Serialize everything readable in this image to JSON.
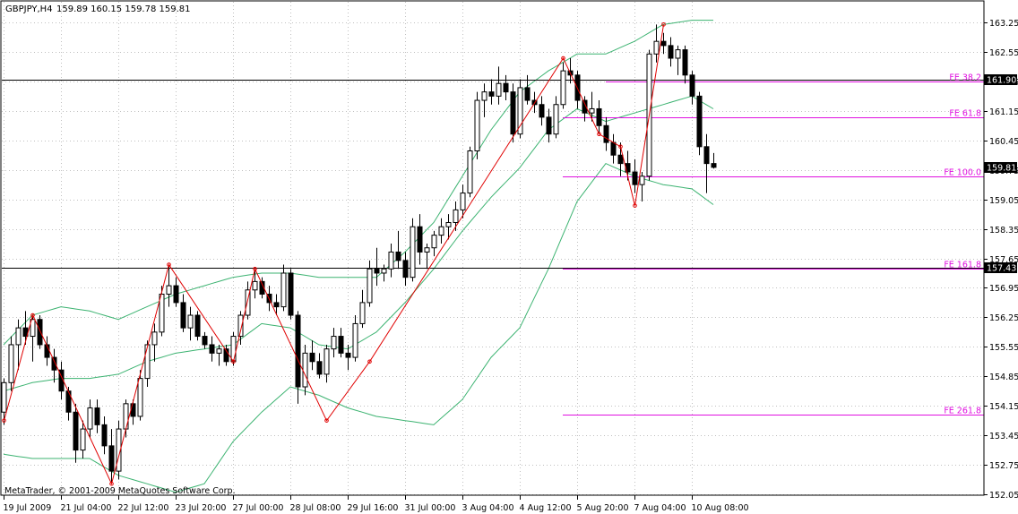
{
  "header": {
    "symbol_text": "GBPJPY,H4",
    "ohlc_text": "159.89 160.15 159.78 159.81"
  },
  "watermark": "MetaTrader, © 2001-2009 MetaQuotes Software Corp.",
  "colors": {
    "background": "#ffffff",
    "grid": "#c0c0c0",
    "candle": "#000000",
    "bollinger": "#3cb371",
    "zigzag": "#e00000",
    "fibo_expansion": "#e010e0",
    "hline": "#000000"
  },
  "chart_data": {
    "type": "candlestick",
    "symbol": "GBPJPY",
    "timeframe": "H4",
    "ylim": [
      151.55,
      163.6
    ],
    "y_ticks": [
      "163.25",
      "162.55",
      "161.85",
      "161.15",
      "160.45",
      "159.75",
      "159.05",
      "158.35",
      "157.65",
      "156.95",
      "156.25",
      "155.55",
      "154.85",
      "154.15",
      "153.45",
      "152.75",
      "152.05"
    ],
    "x_tick_labels": [
      "19 Jul 2009",
      "21 Jul 04:00",
      "22 Jul 12:00",
      "23 Jul 20:00",
      "27 Jul 00:00",
      "28 Jul 08:00",
      "29 Jul 16:00",
      "31 Jul 00:00",
      "3 Aug 04:00",
      "4 Aug 12:00",
      "5 Aug 20:00",
      "7 Aug 04:00",
      "10 Aug 08:00"
    ],
    "x_tick_bar_index": [
      0,
      8,
      16,
      24,
      32,
      40,
      48,
      56,
      64,
      72,
      80,
      88,
      96
    ],
    "candles": [
      [
        154.0,
        154.8,
        153.7,
        154.7
      ],
      [
        154.7,
        155.8,
        154.5,
        155.6
      ],
      [
        155.6,
        156.2,
        155.0,
        156.0
      ],
      [
        156.0,
        156.4,
        155.6,
        155.8
      ],
      [
        155.8,
        156.3,
        155.2,
        156.2
      ],
      [
        156.2,
        156.3,
        155.5,
        155.6
      ],
      [
        155.6,
        155.8,
        155.1,
        155.3
      ],
      [
        155.3,
        155.5,
        154.7,
        155.0
      ],
      [
        155.0,
        155.2,
        154.3,
        154.5
      ],
      [
        154.5,
        154.6,
        153.8,
        154.0
      ],
      [
        154.0,
        154.2,
        152.8,
        153.1
      ],
      [
        153.1,
        153.8,
        152.9,
        153.6
      ],
      [
        153.6,
        154.3,
        153.4,
        154.1
      ],
      [
        154.1,
        154.3,
        153.5,
        153.7
      ],
      [
        153.7,
        153.9,
        153.0,
        153.2
      ],
      [
        153.2,
        153.6,
        152.3,
        152.6
      ],
      [
        152.6,
        153.8,
        152.4,
        153.6
      ],
      [
        153.6,
        154.3,
        153.4,
        154.2
      ],
      [
        154.2,
        154.3,
        153.7,
        153.9
      ],
      [
        153.9,
        155.0,
        153.8,
        154.8
      ],
      [
        154.8,
        155.7,
        154.6,
        155.6
      ],
      [
        155.6,
        156.1,
        155.2,
        155.9
      ],
      [
        155.9,
        157.0,
        155.8,
        156.8
      ],
      [
        156.8,
        157.5,
        156.5,
        157.0
      ],
      [
        157.0,
        157.2,
        156.5,
        156.6
      ],
      [
        156.6,
        156.8,
        155.9,
        156.0
      ],
      [
        156.0,
        156.5,
        155.7,
        156.3
      ],
      [
        156.3,
        156.4,
        155.7,
        155.8
      ],
      [
        155.8,
        155.9,
        155.5,
        155.6
      ],
      [
        155.6,
        155.8,
        155.2,
        155.4
      ],
      [
        155.4,
        155.6,
        155.1,
        155.5
      ],
      [
        155.5,
        155.6,
        155.1,
        155.2
      ],
      [
        155.2,
        155.9,
        155.1,
        155.8
      ],
      [
        155.8,
        156.4,
        155.6,
        156.3
      ],
      [
        156.3,
        157.1,
        156.2,
        156.9
      ],
      [
        156.9,
        157.4,
        156.7,
        157.1
      ],
      [
        157.1,
        157.2,
        156.7,
        156.8
      ],
      [
        156.8,
        157.0,
        156.4,
        156.6
      ],
      [
        156.6,
        156.8,
        156.3,
        156.5
      ],
      [
        156.5,
        157.5,
        156.4,
        157.3
      ],
      [
        157.3,
        157.4,
        156.2,
        156.3
      ],
      [
        156.3,
        156.4,
        154.2,
        154.6
      ],
      [
        154.6,
        155.6,
        154.4,
        155.4
      ],
      [
        155.4,
        155.7,
        155.0,
        155.2
      ],
      [
        155.2,
        155.4,
        154.8,
        154.9
      ],
      [
        154.9,
        155.6,
        154.7,
        155.5
      ],
      [
        155.5,
        156.0,
        155.3,
        155.8
      ],
      [
        155.8,
        156.0,
        155.3,
        155.4
      ],
      [
        155.4,
        155.6,
        155.0,
        155.3
      ],
      [
        155.3,
        156.3,
        155.2,
        156.1
      ],
      [
        156.1,
        156.9,
        156.0,
        156.6
      ],
      [
        156.6,
        157.6,
        156.5,
        157.4
      ],
      [
        157.4,
        157.9,
        157.0,
        157.3
      ],
      [
        157.3,
        157.5,
        157.1,
        157.4
      ],
      [
        157.4,
        158.0,
        157.2,
        157.8
      ],
      [
        157.8,
        158.3,
        157.4,
        157.6
      ],
      [
        157.6,
        157.8,
        157.0,
        157.2
      ],
      [
        157.2,
        158.6,
        157.1,
        158.4
      ],
      [
        158.4,
        158.7,
        157.5,
        157.8
      ],
      [
        157.8,
        158.0,
        157.4,
        157.9
      ],
      [
        157.9,
        158.3,
        157.7,
        158.2
      ],
      [
        158.2,
        158.6,
        158.0,
        158.4
      ],
      [
        158.4,
        158.7,
        158.1,
        158.5
      ],
      [
        158.5,
        159.0,
        158.3,
        158.8
      ],
      [
        158.8,
        159.4,
        158.6,
        159.2
      ],
      [
        159.2,
        160.3,
        159.1,
        160.2
      ],
      [
        160.2,
        161.6,
        160.0,
        161.4
      ],
      [
        161.4,
        161.8,
        161.0,
        161.6
      ],
      [
        161.6,
        161.9,
        161.3,
        161.5
      ],
      [
        161.5,
        162.2,
        161.3,
        161.8
      ],
      [
        161.8,
        162.0,
        161.4,
        161.6
      ],
      [
        161.6,
        161.8,
        160.4,
        160.6
      ],
      [
        160.6,
        161.9,
        160.5,
        161.7
      ],
      [
        161.7,
        162.0,
        161.3,
        161.4
      ],
      [
        161.4,
        161.6,
        161.1,
        161.3
      ],
      [
        161.3,
        161.5,
        160.8,
        161.0
      ],
      [
        161.0,
        161.2,
        160.4,
        160.6
      ],
      [
        160.6,
        161.5,
        160.5,
        161.3
      ],
      [
        161.3,
        162.3,
        161.2,
        162.1
      ],
      [
        162.1,
        162.4,
        161.8,
        162.0
      ],
      [
        162.0,
        162.1,
        161.2,
        161.4
      ],
      [
        161.4,
        161.5,
        160.9,
        161.1
      ],
      [
        161.1,
        161.6,
        160.9,
        161.2
      ],
      [
        161.2,
        161.4,
        160.6,
        160.8
      ],
      [
        160.8,
        161.0,
        160.2,
        160.4
      ],
      [
        160.4,
        160.6,
        159.9,
        160.1
      ],
      [
        160.1,
        160.4,
        159.6,
        159.9
      ],
      [
        159.9,
        160.2,
        159.5,
        159.7
      ],
      [
        159.7,
        160.0,
        159.2,
        159.4
      ],
      [
        159.4,
        159.7,
        159.0,
        159.6
      ],
      [
        159.6,
        162.6,
        159.5,
        162.5
      ],
      [
        162.5,
        163.2,
        162.3,
        162.8
      ],
      [
        162.8,
        163.0,
        162.5,
        162.7
      ],
      [
        162.7,
        162.9,
        162.2,
        162.4
      ],
      [
        162.4,
        162.7,
        162.0,
        162.6
      ],
      [
        162.6,
        162.7,
        161.8,
        162.0
      ],
      [
        162.0,
        162.1,
        161.3,
        161.5
      ],
      [
        161.5,
        161.6,
        160.1,
        160.3
      ],
      [
        160.3,
        160.6,
        159.2,
        159.9
      ],
      [
        159.9,
        160.15,
        159.78,
        159.81
      ]
    ],
    "bollinger": {
      "upper_knots": [
        [
          0,
          155.6
        ],
        [
          4,
          156.3
        ],
        [
          8,
          156.5
        ],
        [
          12,
          156.4
        ],
        [
          16,
          156.2
        ],
        [
          20,
          156.5
        ],
        [
          24,
          156.8
        ],
        [
          28,
          157.0
        ],
        [
          32,
          157.2
        ],
        [
          36,
          157.3
        ],
        [
          40,
          157.3
        ],
        [
          44,
          157.2
        ],
        [
          48,
          157.2
        ],
        [
          52,
          157.2
        ],
        [
          56,
          157.8
        ],
        [
          60,
          158.5
        ],
        [
          64,
          159.6
        ],
        [
          68,
          160.7
        ],
        [
          72,
          161.6
        ],
        [
          76,
          162.1
        ],
        [
          80,
          162.5
        ],
        [
          84,
          162.5
        ],
        [
          88,
          162.8
        ],
        [
          92,
          163.2
        ],
        [
          96,
          163.3
        ],
        [
          100,
          163.3
        ]
      ],
      "middle_knots": [
        [
          0,
          154.5
        ],
        [
          4,
          154.7
        ],
        [
          8,
          154.8
        ],
        [
          12,
          154.8
        ],
        [
          16,
          154.9
        ],
        [
          20,
          155.2
        ],
        [
          24,
          155.4
        ],
        [
          28,
          155.5
        ],
        [
          32,
          155.6
        ],
        [
          36,
          156.1
        ],
        [
          40,
          156.0
        ],
        [
          44,
          155.6
        ],
        [
          48,
          155.5
        ],
        [
          52,
          155.9
        ],
        [
          56,
          156.6
        ],
        [
          60,
          157.4
        ],
        [
          64,
          158.3
        ],
        [
          68,
          159.1
        ],
        [
          72,
          159.8
        ],
        [
          76,
          160.7
        ],
        [
          80,
          161.2
        ],
        [
          84,
          160.9
        ],
        [
          88,
          161.1
        ],
        [
          92,
          161.3
        ],
        [
          96,
          161.5
        ],
        [
          100,
          161.1
        ]
      ],
      "lower_knots": [
        [
          0,
          153.0
        ],
        [
          4,
          152.9
        ],
        [
          8,
          152.9
        ],
        [
          12,
          152.9
        ],
        [
          16,
          152.5
        ],
        [
          20,
          152.3
        ],
        [
          24,
          152.1
        ],
        [
          28,
          152.3
        ],
        [
          32,
          153.3
        ],
        [
          36,
          154.0
        ],
        [
          40,
          154.6
        ],
        [
          44,
          154.4
        ],
        [
          48,
          154.1
        ],
        [
          52,
          153.9
        ],
        [
          56,
          153.8
        ],
        [
          60,
          153.7
        ],
        [
          64,
          154.3
        ],
        [
          68,
          155.3
        ],
        [
          72,
          156.0
        ],
        [
          76,
          157.4
        ],
        [
          80,
          159.0
        ],
        [
          84,
          159.9
        ],
        [
          88,
          159.6
        ],
        [
          92,
          159.4
        ],
        [
          96,
          159.3
        ],
        [
          100,
          158.8
        ]
      ]
    },
    "zigzag": [
      [
        0,
        153.8
      ],
      [
        4,
        156.3
      ],
      [
        15,
        152.3
      ],
      [
        23,
        157.5
      ],
      [
        32,
        155.2
      ],
      [
        35,
        157.4
      ],
      [
        45,
        153.8
      ],
      [
        51,
        155.2
      ],
      [
        78,
        162.4
      ],
      [
        83,
        160.6
      ],
      [
        86,
        160.3
      ],
      [
        88,
        158.9
      ],
      [
        92,
        163.2
      ]
    ],
    "horizontal_lines": [
      {
        "price": "161.90",
        "value": 161.9
      },
      {
        "price": "157.43",
        "value": 157.43
      }
    ],
    "current_price": {
      "label": "159.81",
      "value": 159.81
    },
    "fibo_expansion": [
      {
        "label": "FE 38.2",
        "value": 161.85,
        "start_bar": 84
      },
      {
        "label": "FE 61.8",
        "value": 161.0,
        "start_bar": 78
      },
      {
        "label": "FE 100.0",
        "value": 159.6,
        "start_bar": 78
      },
      {
        "label": "FE 161.8",
        "value": 157.4,
        "start_bar": 78
      },
      {
        "label": "FE 261.8",
        "value": 153.95,
        "start_bar": 78
      }
    ]
  }
}
